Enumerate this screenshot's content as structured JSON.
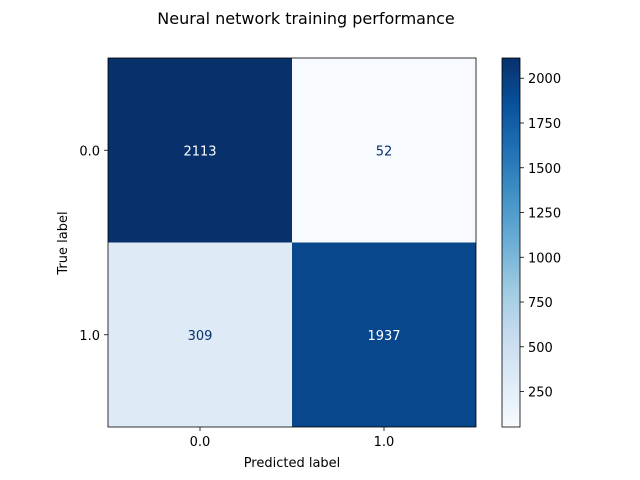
{
  "chart_data": {
    "type": "heatmap",
    "title": "Neural network training performance",
    "xlabel": "Predicted label",
    "ylabel": "True label",
    "x_categories": [
      "0.0",
      "1.0"
    ],
    "y_categories": [
      "0.0",
      "1.0"
    ],
    "values": [
      [
        2113,
        52
      ],
      [
        309,
        1937
      ]
    ],
    "colormap": "Blues",
    "color_range": [
      52,
      2113
    ],
    "colorbar_ticks": [
      "250",
      "500",
      "750",
      "1000",
      "1250",
      "1500",
      "1750",
      "2000"
    ],
    "colorbar_tick_values": [
      250,
      500,
      750,
      1000,
      1250,
      1500,
      1750,
      2000
    ],
    "grid": false,
    "text_colors": {
      "light": "#ffffff",
      "dark": "#08306b"
    }
  }
}
